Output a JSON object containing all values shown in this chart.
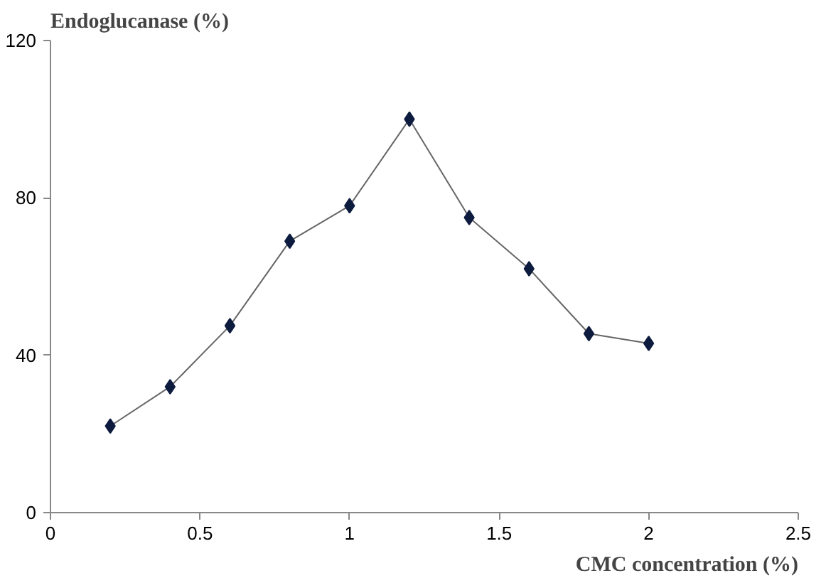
{
  "chart_data": {
    "type": "line",
    "xlabel": "CMC concentration (%)",
    "ylabel": "Endoglucanase (%)",
    "x": [
      0.2,
      0.4,
      0.6,
      0.8,
      1.0,
      1.2,
      1.4,
      1.6,
      1.8,
      2.0
    ],
    "series": [
      {
        "color": "#0d1b3e",
        "values": [
          22,
          32,
          47.5,
          69,
          78,
          100,
          75,
          62,
          45.5,
          43
        ]
      }
    ],
    "xlim": [
      0,
      2.5
    ],
    "xticks": [
      0,
      0.5,
      1,
      1.5,
      2,
      2.5
    ],
    "ylim": [
      0,
      120
    ],
    "yticks": [
      0,
      40,
      80,
      120
    ],
    "grid": false,
    "marker": "diamond",
    "line_style": "solid"
  }
}
